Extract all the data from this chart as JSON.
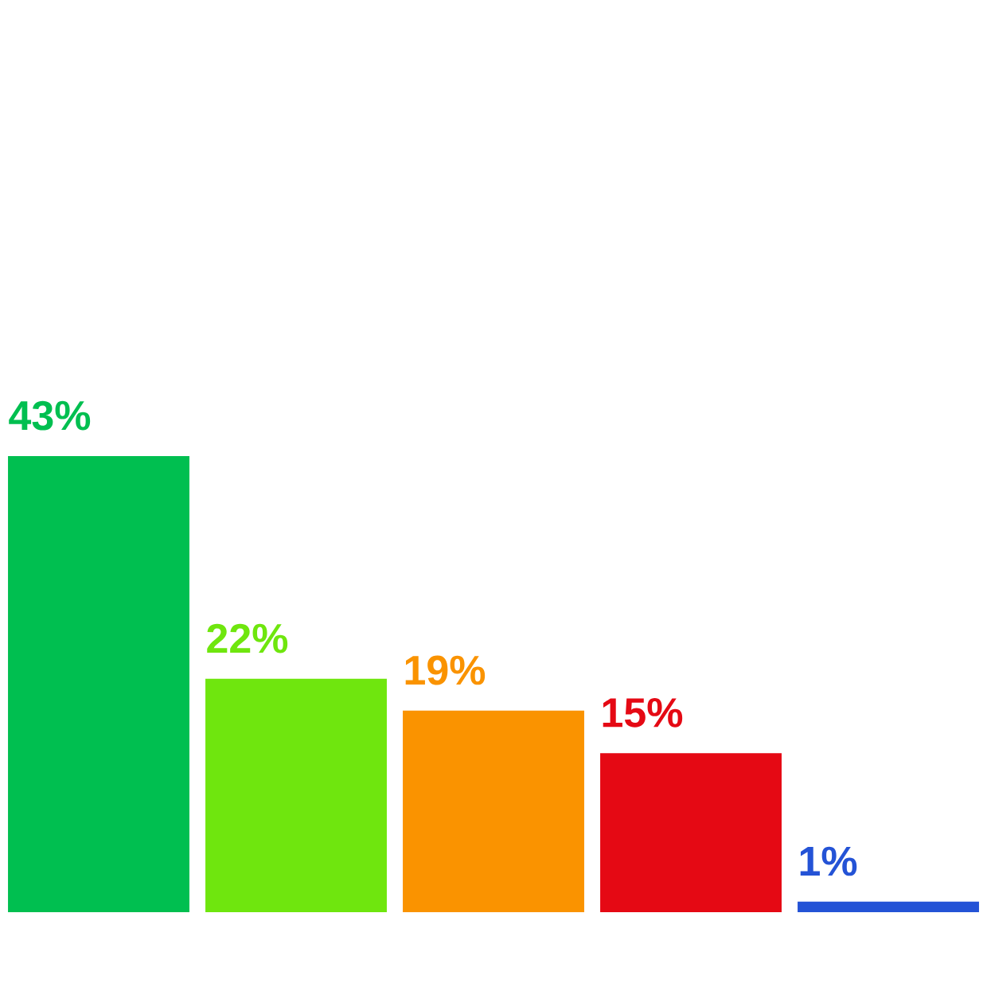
{
  "chart_data": {
    "type": "bar",
    "categories": [
      null,
      null,
      null,
      null,
      null
    ],
    "values": [
      43,
      22,
      19,
      15,
      1
    ],
    "colors": [
      "#00bf50",
      "#6fe60e",
      "#fa9300",
      "#e50914",
      "#2453d6"
    ],
    "value_labels": [
      "43%",
      "22%",
      "19%",
      "15%",
      "1%"
    ]
  }
}
